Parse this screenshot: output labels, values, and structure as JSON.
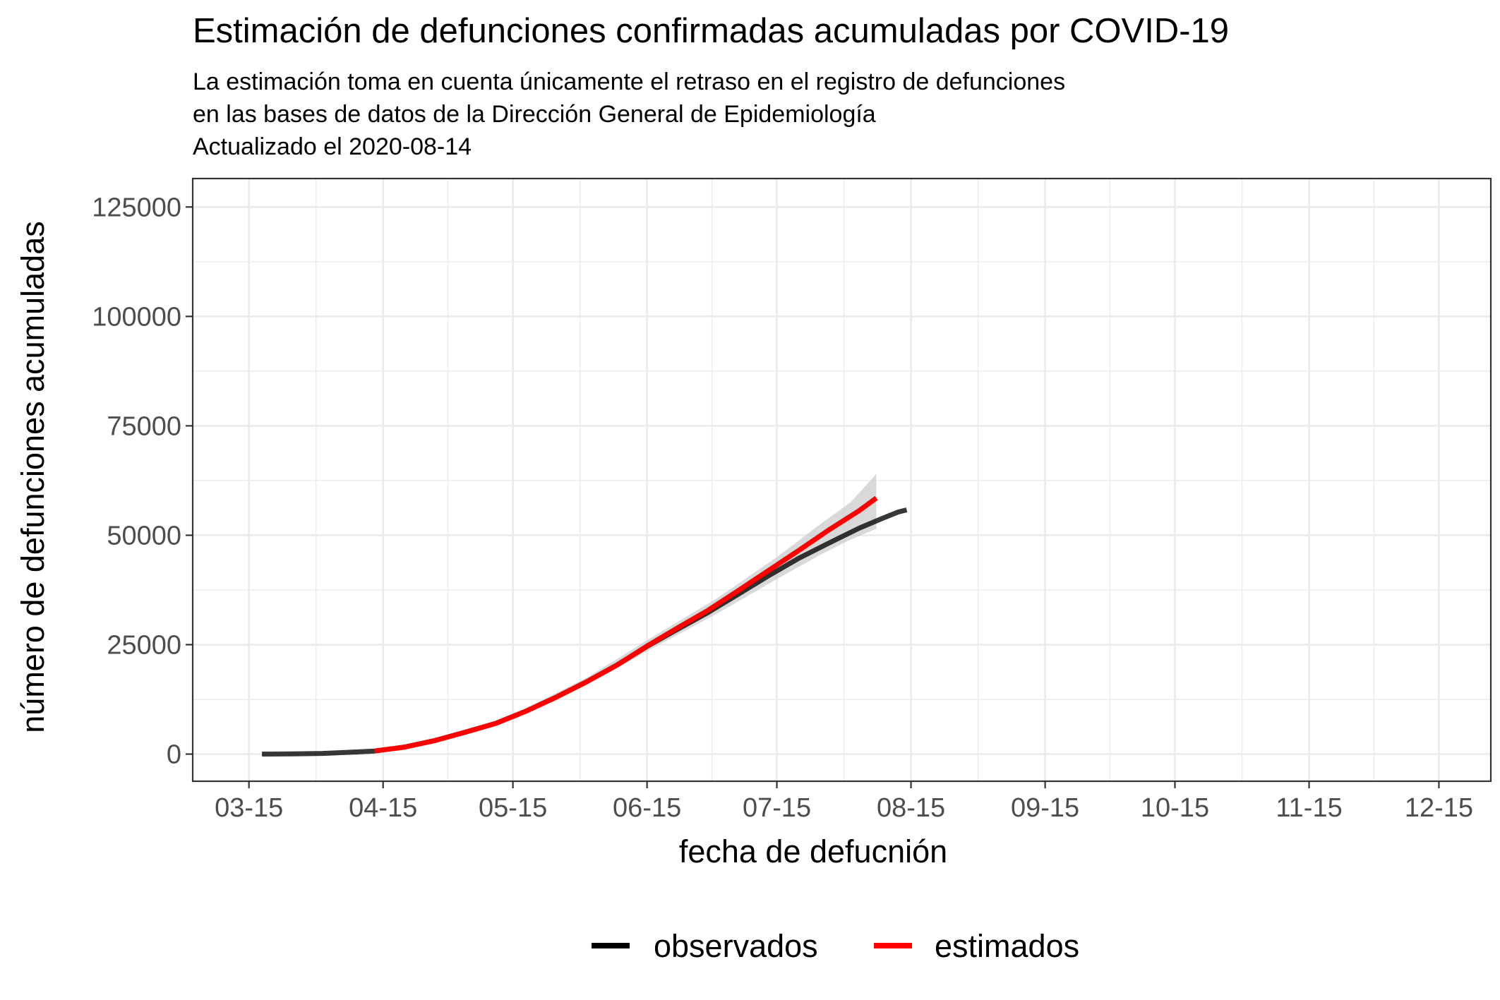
{
  "chart_data": {
    "type": "line",
    "title": "Estimación de defunciones confirmadas acumuladas por COVID-19",
    "subtitle": [
      "La estimación toma en cuenta únicamente el retraso en el registro de defunciones",
      "en las bases de datos de la Dirección General de Epidemiología",
      "Actualizado el 2020-08-14"
    ],
    "xlabel": "fecha de defucnión",
    "ylabel": "número de defunciones acumuladas",
    "xlim": [
      "2020-03-02",
      "2020-12-27"
    ],
    "ylim": [
      -6200,
      131500
    ],
    "x_ticks": [
      {
        "date": "2020-03-15",
        "label": "03-15"
      },
      {
        "date": "2020-04-15",
        "label": "04-15"
      },
      {
        "date": "2020-05-15",
        "label": "05-15"
      },
      {
        "date": "2020-06-15",
        "label": "06-15"
      },
      {
        "date": "2020-07-15",
        "label": "07-15"
      },
      {
        "date": "2020-08-15",
        "label": "08-15"
      },
      {
        "date": "2020-09-15",
        "label": "09-15"
      },
      {
        "date": "2020-10-15",
        "label": "10-15"
      },
      {
        "date": "2020-11-15",
        "label": "11-15"
      },
      {
        "date": "2020-12-15",
        "label": "12-15"
      }
    ],
    "y_ticks": [
      0,
      25000,
      50000,
      75000,
      100000,
      125000
    ],
    "grid": true,
    "legend_position": "bottom",
    "series": [
      {
        "name": "observados",
        "color": "#000000",
        "points": [
          [
            "2020-03-18",
            0
          ],
          [
            "2020-03-25",
            40
          ],
          [
            "2020-04-01",
            150
          ],
          [
            "2020-04-08",
            450
          ],
          [
            "2020-04-13",
            700
          ],
          [
            "2020-04-20",
            1600
          ],
          [
            "2020-04-27",
            3100
          ],
          [
            "2020-05-04",
            5000
          ],
          [
            "2020-05-11",
            7000
          ],
          [
            "2020-05-18",
            9800
          ],
          [
            "2020-05-25",
            13000
          ],
          [
            "2020-06-01",
            16500
          ],
          [
            "2020-06-08",
            20300
          ],
          [
            "2020-06-15",
            24600
          ],
          [
            "2020-06-22",
            28500
          ],
          [
            "2020-06-29",
            32300
          ],
          [
            "2020-07-06",
            36500
          ],
          [
            "2020-07-13",
            40700
          ],
          [
            "2020-07-20",
            44700
          ],
          [
            "2020-07-27",
            48200
          ],
          [
            "2020-08-03",
            51600
          ],
          [
            "2020-08-08",
            53700
          ],
          [
            "2020-08-12",
            55300
          ],
          [
            "2020-08-14",
            55800
          ]
        ]
      },
      {
        "name": "estimados",
        "color": "#ff0000",
        "points": [
          [
            "2020-04-13",
            700
          ],
          [
            "2020-04-20",
            1600
          ],
          [
            "2020-04-27",
            3100
          ],
          [
            "2020-05-04",
            5000
          ],
          [
            "2020-05-11",
            7000
          ],
          [
            "2020-05-18",
            9800
          ],
          [
            "2020-05-25",
            13000
          ],
          [
            "2020-06-01",
            16500
          ],
          [
            "2020-06-08",
            20300
          ],
          [
            "2020-06-15",
            24700
          ],
          [
            "2020-06-22",
            28800
          ],
          [
            "2020-06-29",
            32800
          ],
          [
            "2020-07-06",
            37300
          ],
          [
            "2020-07-13",
            41900
          ],
          [
            "2020-07-20",
            46500
          ],
          [
            "2020-07-27",
            51200
          ],
          [
            "2020-08-03",
            55600
          ],
          [
            "2020-08-07",
            58500
          ]
        ]
      }
    ],
    "interval_color": "#cccccc",
    "interval": [
      [
        "2020-05-15",
        7800,
        9000
      ],
      [
        "2020-06-01",
        15800,
        17400
      ],
      [
        "2020-06-15",
        23500,
        26000
      ],
      [
        "2020-07-01",
        32000,
        35500
      ],
      [
        "2020-07-15",
        40000,
        45000
      ],
      [
        "2020-07-25",
        45500,
        52500
      ],
      [
        "2020-08-01",
        49000,
        57500
      ],
      [
        "2020-08-07",
        51500,
        64000
      ]
    ]
  }
}
